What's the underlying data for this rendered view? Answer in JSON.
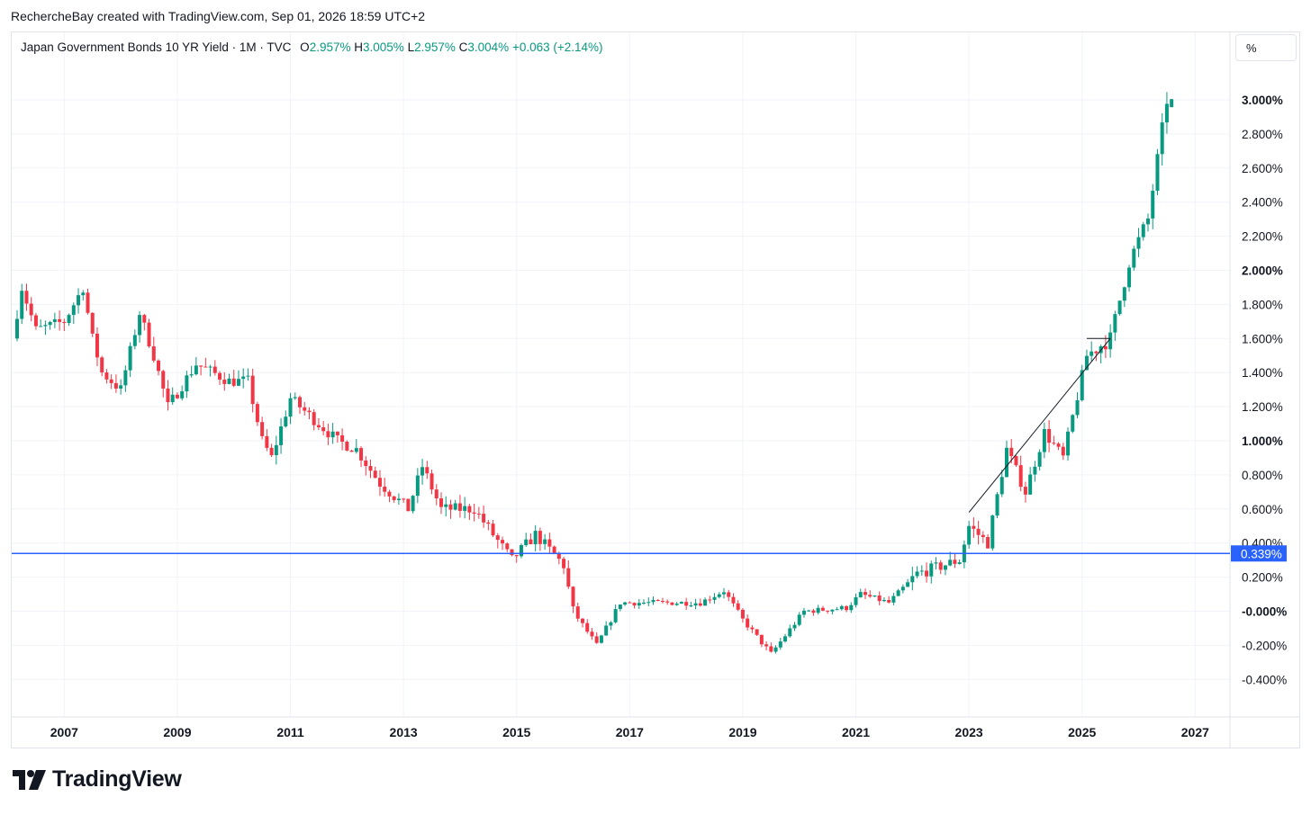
{
  "header": {
    "credit": "RechercheBay created with TradingView.com, Sep 01, 2026 18:59 UTC+2"
  },
  "legend": {
    "symbol": "Japan Government Bonds 10 YR Yield · 1M · TVC",
    "open_label": "O",
    "open": "2.957%",
    "high_label": "H",
    "high": "3.005%",
    "low_label": "L",
    "low": "2.957%",
    "close_label": "C",
    "close": "3.004%",
    "change": "+0.063 (+2.14%)"
  },
  "unit_button": "%",
  "colors": {
    "up": "#089981",
    "down": "#f23645",
    "price_line": "#2962ff",
    "grid": "#f0f3fa"
  },
  "brand": {
    "logo_text": "TradingView",
    "logo_icon": "tradingview-logo-icon"
  },
  "chart_data": {
    "type": "candlestick",
    "interval": "1M",
    "x_axis": {
      "ticks": [
        "2007",
        "2009",
        "2011",
        "2013",
        "2015",
        "2017",
        "2019",
        "2021",
        "2023",
        "2025",
        "2027"
      ]
    },
    "y_axis": {
      "ticks": [
        "3.000%",
        "2.800%",
        "2.600%",
        "2.400%",
        "2.200%",
        "2.000%",
        "1.800%",
        "1.600%",
        "1.400%",
        "1.200%",
        "1.000%",
        "0.800%",
        "0.600%",
        "0.400%",
        "0.200%",
        "-0.000%",
        "-0.200%",
        "-0.400%"
      ],
      "range": [
        -0.6,
        3.45
      ]
    },
    "price_line": {
      "value": 0.339,
      "label": "0.339%"
    },
    "trend_line": {
      "start": [
        "2023-01",
        0.58
      ],
      "end": [
        "2025-07",
        1.6
      ]
    },
    "horizontal_segment": {
      "start": "2025-02",
      "end": "2025-07",
      "value": 1.6
    },
    "waypoints": [
      [
        "2006-03",
        1.6
      ],
      [
        "2006-05",
        1.9
      ],
      [
        "2006-08",
        1.65
      ],
      [
        "2007-02",
        1.7
      ],
      [
        "2007-06",
        1.9
      ],
      [
        "2007-08",
        1.6
      ],
      [
        "2007-10",
        1.4
      ],
      [
        "2008-02",
        1.3
      ],
      [
        "2008-06",
        1.75
      ],
      [
        "2008-09",
        1.5
      ],
      [
        "2008-12",
        1.2
      ],
      [
        "2009-06",
        1.45
      ],
      [
        "2010-01",
        1.35
      ],
      [
        "2010-05",
        1.35
      ],
      [
        "2010-08",
        1.0
      ],
      [
        "2010-10",
        0.9
      ],
      [
        "2011-02",
        1.25
      ],
      [
        "2011-06",
        1.15
      ],
      [
        "2011-12",
        1.0
      ],
      [
        "2012-04",
        0.95
      ],
      [
        "2012-09",
        0.75
      ],
      [
        "2013-03",
        0.6
      ],
      [
        "2013-06",
        0.85
      ],
      [
        "2013-10",
        0.6
      ],
      [
        "2014-05",
        0.6
      ],
      [
        "2015-01",
        0.3
      ],
      [
        "2015-06",
        0.45
      ],
      [
        "2015-12",
        0.27
      ],
      [
        "2016-02",
        0.0
      ],
      [
        "2016-07",
        -0.2
      ],
      [
        "2016-12",
        0.05
      ],
      [
        "2017-06",
        0.05
      ],
      [
        "2018-05",
        0.05
      ],
      [
        "2018-10",
        0.12
      ],
      [
        "2019-02",
        -0.05
      ],
      [
        "2019-08",
        -0.25
      ],
      [
        "2020-03",
        0.0
      ],
      [
        "2020-12",
        0.02
      ],
      [
        "2021-03",
        0.1
      ],
      [
        "2021-09",
        0.05
      ],
      [
        "2022-03",
        0.22
      ],
      [
        "2022-12",
        0.3
      ],
      [
        "2023-02",
        0.5
      ],
      [
        "2023-06",
        0.4
      ],
      [
        "2023-10",
        0.95
      ],
      [
        "2024-02",
        0.7
      ],
      [
        "2024-06",
        1.05
      ],
      [
        "2024-10",
        0.9
      ],
      [
        "2025-03",
        1.5
      ],
      [
        "2025-08",
        1.6
      ],
      [
        "2025-12",
        2.05
      ],
      [
        "2026-04",
        2.3
      ],
      [
        "2026-08",
        3.0
      ]
    ],
    "last_candle": {
      "open": 2.957,
      "high": 3.005,
      "low": 2.957,
      "close": 3.004
    }
  }
}
